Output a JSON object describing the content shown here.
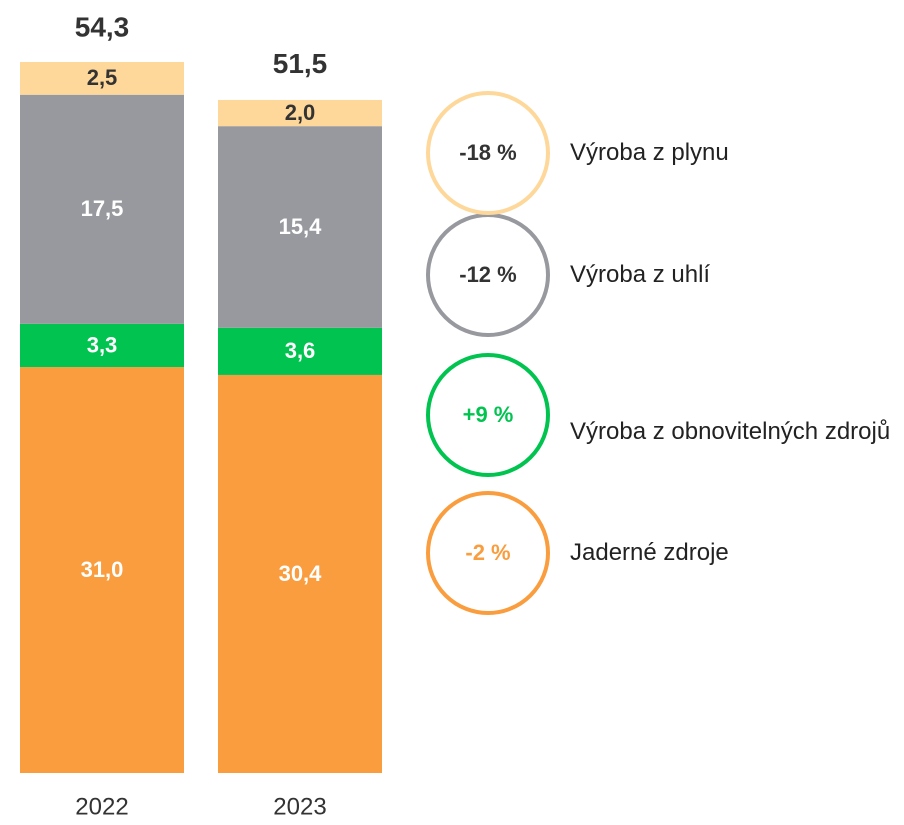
{
  "chart_data": {
    "type": "stacked_bar",
    "categories": [
      "2022",
      "2023"
    ],
    "ylim": [
      0,
      54.3
    ],
    "totals": [
      54.3,
      51.5
    ],
    "total_labels": [
      "54,3",
      "51,5"
    ],
    "series": [
      {
        "name": "Jaderné zdroje",
        "color": "#f99d3e",
        "label_color": "#ffffff",
        "values": [
          31.0,
          30.4
        ],
        "value_labels": [
          "31,0",
          "30,4"
        ],
        "change": "-2 %",
        "change_color": "#f99d3e"
      },
      {
        "name": "Výroba z obnovitelných zdrojů",
        "color": "#00c44f",
        "label_color": "#ffffff",
        "values": [
          3.3,
          3.6
        ],
        "value_labels": [
          "3,3",
          "3,6"
        ],
        "change": "+9 %",
        "change_color": "#00c44f"
      },
      {
        "name": "Výroba z uhlí",
        "color": "#97999e",
        "label_color": "#ffffff",
        "values": [
          17.5,
          15.4
        ],
        "value_labels": [
          "17,5",
          "15,4"
        ],
        "change": "-12 %",
        "change_color": "#333333"
      },
      {
        "name": "Výroba z plynu",
        "color": "#fdd89a",
        "label_color": "#333333",
        "values": [
          2.5,
          2.0
        ],
        "value_labels": [
          "2,5",
          "2,0"
        ],
        "change": "-18 %",
        "change_color": "#333333"
      }
    ]
  }
}
